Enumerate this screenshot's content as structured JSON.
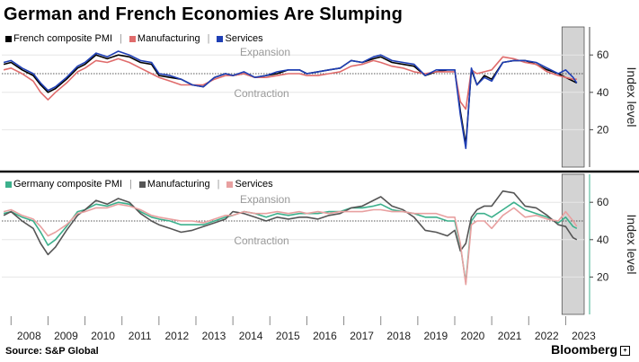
{
  "title": "German and French Economies Are Slumping",
  "source": "Source: S&P Global",
  "brand": "Bloomberg",
  "chart_data": [
    {
      "type": "line",
      "ylabel": "Index level",
      "ylim": [
        0,
        75
      ],
      "yticks": [
        20,
        40,
        60
      ],
      "reference_line": 50,
      "annotations": [
        "Expansion",
        "Contraction"
      ],
      "shaded_region": [
        2022.9,
        2023.5
      ],
      "xlim": [
        2007.75,
        2023.5
      ],
      "series": [
        {
          "name": "French composite PMI",
          "color": "#000000",
          "x": [
            2007.8,
            2008.0,
            2008.3,
            2008.6,
            2008.8,
            2009.0,
            2009.2,
            2009.5,
            2009.8,
            2010.0,
            2010.3,
            2010.6,
            2010.9,
            2011.2,
            2011.5,
            2011.8,
            2012.0,
            2012.3,
            2012.6,
            2012.9,
            2013.2,
            2013.5,
            2013.8,
            2014.0,
            2014.3,
            2014.6,
            2014.9,
            2015.2,
            2015.5,
            2015.8,
            2016.0,
            2016.3,
            2016.6,
            2016.9,
            2017.2,
            2017.5,
            2017.8,
            2018.0,
            2018.3,
            2018.6,
            2018.9,
            2019.2,
            2019.5,
            2019.8,
            2020.0,
            2020.15,
            2020.3,
            2020.45,
            2020.6,
            2020.8,
            2021.0,
            2021.3,
            2021.6,
            2021.9,
            2022.2,
            2022.5,
            2022.8,
            2023.0,
            2023.2,
            2023.3
          ],
          "values": [
            55,
            56,
            52,
            49,
            44,
            40,
            42,
            47,
            53,
            55,
            60,
            58,
            60,
            59,
            56,
            55,
            49,
            48,
            47,
            44,
            43,
            48,
            50,
            49,
            50,
            48,
            49,
            50,
            52,
            52,
            50,
            51,
            52,
            53,
            57,
            56,
            58,
            59,
            56,
            55,
            54,
            49,
            51,
            52,
            52,
            30,
            12,
            52,
            44,
            49,
            47,
            56,
            57,
            57,
            55,
            52,
            50,
            48,
            46,
            45
          ]
        },
        {
          "name": "Manufacturing",
          "color": "#e06c6c",
          "x": [
            2007.8,
            2008.0,
            2008.3,
            2008.6,
            2008.8,
            2009.0,
            2009.2,
            2009.5,
            2009.8,
            2010.0,
            2010.3,
            2010.6,
            2010.9,
            2011.2,
            2011.5,
            2011.8,
            2012.0,
            2012.3,
            2012.6,
            2012.9,
            2013.2,
            2013.5,
            2013.8,
            2014.0,
            2014.3,
            2014.6,
            2014.9,
            2015.2,
            2015.5,
            2015.8,
            2016.0,
            2016.3,
            2016.6,
            2016.9,
            2017.2,
            2017.5,
            2017.8,
            2018.0,
            2018.3,
            2018.6,
            2018.9,
            2019.2,
            2019.5,
            2019.8,
            2020.0,
            2020.15,
            2020.3,
            2020.45,
            2020.6,
            2020.8,
            2021.0,
            2021.3,
            2021.6,
            2021.9,
            2022.2,
            2022.5,
            2022.8,
            2023.0,
            2023.2,
            2023.3
          ],
          "values": [
            52,
            53,
            50,
            46,
            40,
            36,
            40,
            45,
            51,
            53,
            57,
            56,
            58,
            56,
            53,
            50,
            48,
            46,
            44,
            44,
            44,
            47,
            49,
            49,
            50,
            48,
            48,
            49,
            50,
            50,
            49,
            49,
            50,
            51,
            54,
            55,
            57,
            56,
            54,
            53,
            51,
            50,
            51,
            51,
            51,
            35,
            31,
            52,
            50,
            51,
            52,
            59,
            58,
            56,
            55,
            51,
            49,
            48,
            47,
            47
          ]
        },
        {
          "name": "Services",
          "color": "#1f3fb5",
          "x": [
            2007.8,
            2008.0,
            2008.3,
            2008.6,
            2008.8,
            2009.0,
            2009.2,
            2009.5,
            2009.8,
            2010.0,
            2010.3,
            2010.6,
            2010.9,
            2011.2,
            2011.5,
            2011.8,
            2012.0,
            2012.3,
            2012.6,
            2012.9,
            2013.2,
            2013.5,
            2013.8,
            2014.0,
            2014.3,
            2014.6,
            2014.9,
            2015.2,
            2015.5,
            2015.8,
            2016.0,
            2016.3,
            2016.6,
            2016.9,
            2017.2,
            2017.5,
            2017.8,
            2018.0,
            2018.3,
            2018.6,
            2018.9,
            2019.2,
            2019.5,
            2019.8,
            2020.0,
            2020.15,
            2020.3,
            2020.45,
            2020.6,
            2020.8,
            2021.0,
            2021.3,
            2021.6,
            2021.9,
            2022.2,
            2022.5,
            2022.8,
            2023.0,
            2023.2,
            2023.3
          ],
          "values": [
            56,
            57,
            53,
            50,
            45,
            41,
            43,
            48,
            54,
            56,
            61,
            59,
            62,
            60,
            57,
            56,
            50,
            49,
            47,
            44,
            43,
            48,
            50,
            49,
            51,
            48,
            49,
            51,
            52,
            52,
            50,
            51,
            52,
            53,
            57,
            56,
            59,
            60,
            57,
            56,
            55,
            49,
            52,
            52,
            52,
            28,
            10,
            53,
            44,
            48,
            46,
            56,
            57,
            57,
            56,
            53,
            50,
            52,
            48,
            45
          ]
        }
      ]
    },
    {
      "type": "line",
      "ylabel": "Index level",
      "ylim": [
        0,
        75
      ],
      "yticks": [
        20,
        40,
        60
      ],
      "reference_line": 50,
      "annotations": [
        "Expansion",
        "Contraction"
      ],
      "shaded_region": [
        2022.9,
        2023.5
      ],
      "xlim": [
        2007.75,
        2023.5
      ],
      "x_ticks": [
        "2008",
        "2009",
        "2010",
        "2011",
        "2012",
        "2013",
        "2014",
        "2015",
        "2016",
        "2017",
        "2018",
        "2019",
        "2020",
        "2021",
        "2022",
        "2023"
      ],
      "series": [
        {
          "name": "Germany composite PMI",
          "color": "#3cb08c",
          "x": [
            2007.8,
            2008.0,
            2008.3,
            2008.6,
            2008.8,
            2009.0,
            2009.2,
            2009.5,
            2009.8,
            2010.0,
            2010.3,
            2010.6,
            2010.9,
            2011.2,
            2011.5,
            2011.8,
            2012.0,
            2012.3,
            2012.6,
            2012.9,
            2013.2,
            2013.5,
            2013.8,
            2014.0,
            2014.3,
            2014.6,
            2014.9,
            2015.2,
            2015.5,
            2015.8,
            2016.0,
            2016.3,
            2016.6,
            2016.9,
            2017.2,
            2017.5,
            2017.8,
            2018.0,
            2018.3,
            2018.6,
            2018.9,
            2019.2,
            2019.5,
            2019.8,
            2020.0,
            2020.15,
            2020.3,
            2020.45,
            2020.6,
            2020.8,
            2021.0,
            2021.3,
            2021.6,
            2021.9,
            2022.2,
            2022.5,
            2022.8,
            2023.0,
            2023.2,
            2023.3
          ],
          "values": [
            54,
            55,
            52,
            50,
            44,
            37,
            40,
            47,
            55,
            56,
            59,
            58,
            60,
            59,
            55,
            52,
            51,
            50,
            48,
            48,
            48,
            50,
            52,
            53,
            55,
            54,
            52,
            54,
            53,
            54,
            54,
            54,
            55,
            55,
            57,
            57,
            58,
            59,
            56,
            55,
            54,
            52,
            52,
            50,
            50,
            37,
            17,
            50,
            54,
            54,
            52,
            56,
            60,
            56,
            54,
            52,
            49,
            52,
            47,
            46
          ]
        },
        {
          "name": "Manufacturing",
          "color": "#555555",
          "x": [
            2007.8,
            2008.0,
            2008.3,
            2008.6,
            2008.8,
            2009.0,
            2009.2,
            2009.5,
            2009.8,
            2010.0,
            2010.3,
            2010.6,
            2010.9,
            2011.2,
            2011.5,
            2011.8,
            2012.0,
            2012.3,
            2012.6,
            2012.9,
            2013.2,
            2013.5,
            2013.8,
            2014.0,
            2014.3,
            2014.6,
            2014.9,
            2015.2,
            2015.5,
            2015.8,
            2016.0,
            2016.3,
            2016.6,
            2016.9,
            2017.2,
            2017.5,
            2017.8,
            2018.0,
            2018.3,
            2018.6,
            2018.9,
            2019.2,
            2019.5,
            2019.8,
            2020.0,
            2020.15,
            2020.3,
            2020.45,
            2020.6,
            2020.8,
            2021.0,
            2021.3,
            2021.6,
            2021.9,
            2022.2,
            2022.5,
            2022.8,
            2023.0,
            2023.2,
            2023.3
          ],
          "values": [
            53,
            55,
            50,
            46,
            38,
            32,
            36,
            45,
            53,
            56,
            61,
            59,
            62,
            60,
            54,
            50,
            48,
            46,
            44,
            45,
            47,
            49,
            51,
            55,
            54,
            52,
            50,
            52,
            51,
            52,
            52,
            51,
            53,
            54,
            57,
            58,
            61,
            63,
            58,
            56,
            52,
            45,
            44,
            42,
            45,
            34,
            38,
            52,
            56,
            58,
            58,
            66,
            65,
            58,
            57,
            53,
            48,
            47,
            41,
            40
          ]
        },
        {
          "name": "Services",
          "color": "#e8a0a0",
          "x": [
            2007.8,
            2008.0,
            2008.3,
            2008.6,
            2008.8,
            2009.0,
            2009.2,
            2009.5,
            2009.8,
            2010.0,
            2010.3,
            2010.6,
            2010.9,
            2011.2,
            2011.5,
            2011.8,
            2012.0,
            2012.3,
            2012.6,
            2012.9,
            2013.2,
            2013.5,
            2013.8,
            2014.0,
            2014.3,
            2014.6,
            2014.9,
            2015.2,
            2015.5,
            2015.8,
            2016.0,
            2016.3,
            2016.6,
            2016.9,
            2017.2,
            2017.5,
            2017.8,
            2018.0,
            2018.3,
            2018.6,
            2018.9,
            2019.2,
            2019.5,
            2019.8,
            2020.0,
            2020.15,
            2020.3,
            2020.45,
            2020.6,
            2020.8,
            2021.0,
            2021.3,
            2021.6,
            2021.9,
            2022.2,
            2022.5,
            2022.8,
            2023.0,
            2023.2,
            2023.3
          ],
          "values": [
            55,
            56,
            53,
            51,
            47,
            42,
            44,
            48,
            54,
            55,
            57,
            57,
            59,
            58,
            56,
            53,
            52,
            51,
            50,
            50,
            49,
            51,
            53,
            53,
            55,
            54,
            54,
            55,
            54,
            55,
            54,
            55,
            54,
            55,
            55,
            55,
            56,
            56,
            55,
            55,
            54,
            54,
            54,
            52,
            52,
            38,
            16,
            48,
            50,
            50,
            46,
            53,
            57,
            52,
            53,
            51,
            50,
            55,
            50,
            47
          ]
        }
      ]
    }
  ]
}
